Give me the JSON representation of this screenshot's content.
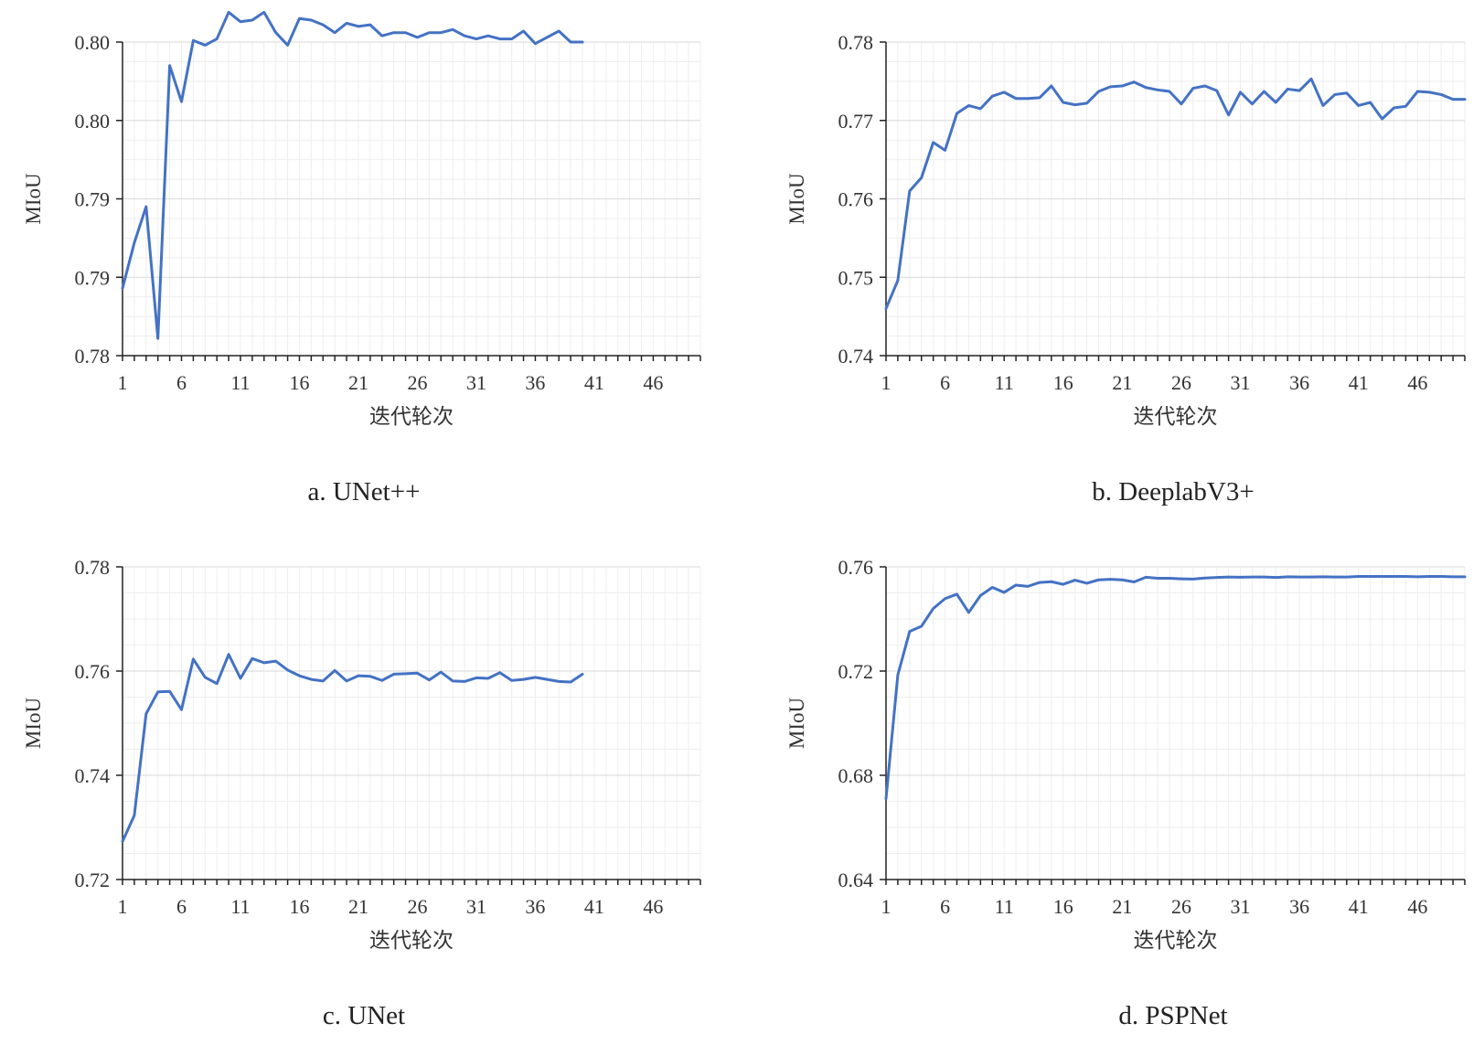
{
  "figure": {
    "xlabel": "迭代轮次",
    "ylabel": "MIoU",
    "line_color": "#4472C4"
  },
  "chart_data": [
    {
      "type": "line",
      "caption": "a. UNet++",
      "xlabel": "迭代轮次",
      "ylabel": "MIoU",
      "xlim": [
        1,
        50
      ],
      "xticks": [
        "1",
        "6",
        "11",
        "16",
        "21",
        "26",
        "31",
        "36",
        "41",
        "46"
      ],
      "ylim": [
        0.78,
        0.8
      ],
      "ytick_labels": [
        "0.78",
        "0.79",
        "0.79",
        "0.80",
        "0.80"
      ],
      "grid": true,
      "x": [
        1,
        2,
        3,
        4,
        5,
        6,
        7,
        8,
        9,
        10,
        11,
        12,
        13,
        14,
        15,
        16,
        17,
        18,
        19,
        20,
        21,
        22,
        23,
        24,
        25,
        26,
        27,
        28,
        29,
        30,
        31,
        32,
        33,
        34,
        35,
        36,
        37,
        38,
        39,
        40
      ],
      "series": [
        {
          "values": [
            0.7843,
            0.7872,
            0.7895,
            0.7811,
            0.7985,
            0.7962,
            0.8001,
            0.7998,
            0.8002,
            0.8019,
            0.8013,
            0.8014,
            0.8019,
            0.8006,
            0.7998,
            0.8015,
            0.8014,
            0.8011,
            0.8006,
            0.8012,
            0.801,
            0.8011,
            0.8004,
            0.8006,
            0.8006,
            0.8003,
            0.8006,
            0.8006,
            0.8008,
            0.8004,
            0.8002,
            0.8004,
            0.8002,
            0.8002,
            0.8007,
            0.7999,
            0.8003,
            0.8007,
            0.8,
            0.8
          ]
        }
      ]
    },
    {
      "type": "line",
      "caption": "b. DeeplabV3+",
      "xlabel": "迭代轮次",
      "ylabel": "MIoU",
      "xlim": [
        1,
        50
      ],
      "xticks": [
        "1",
        "6",
        "11",
        "16",
        "21",
        "26",
        "31",
        "36",
        "41",
        "46"
      ],
      "ylim": [
        0.74,
        0.78
      ],
      "ytick_labels": [
        "0.74",
        "0.75",
        "0.76",
        "0.77",
        "0.78"
      ],
      "grid": true,
      "x": [
        1,
        2,
        3,
        4,
        5,
        6,
        7,
        8,
        9,
        10,
        11,
        12,
        13,
        14,
        15,
        16,
        17,
        18,
        19,
        20,
        21,
        22,
        23,
        24,
        25,
        26,
        27,
        28,
        29,
        30,
        31,
        32,
        33,
        34,
        35,
        36,
        37,
        38,
        39,
        40,
        41,
        42,
        43,
        44,
        45,
        46,
        47,
        48,
        49,
        50
      ],
      "series": [
        {
          "values": [
            0.746,
            0.7496,
            0.761,
            0.7627,
            0.7672,
            0.7662,
            0.7709,
            0.7719,
            0.7715,
            0.7731,
            0.7736,
            0.7728,
            0.7728,
            0.7729,
            0.7744,
            0.7723,
            0.772,
            0.7722,
            0.7737,
            0.7743,
            0.7744,
            0.7749,
            0.7742,
            0.7739,
            0.7737,
            0.7721,
            0.7741,
            0.7744,
            0.7738,
            0.7707,
            0.7736,
            0.7721,
            0.7737,
            0.7723,
            0.774,
            0.7738,
            0.7753,
            0.7719,
            0.7733,
            0.7735,
            0.7719,
            0.7723,
            0.7702,
            0.7716,
            0.7718,
            0.7737,
            0.7736,
            0.7733,
            0.7727,
            0.7727
          ]
        }
      ]
    },
    {
      "type": "line",
      "caption": "c. UNet",
      "xlabel": "迭代轮次",
      "ylabel": "MIoU",
      "xlim": [
        1,
        50
      ],
      "xticks": [
        "1",
        "6",
        "11",
        "16",
        "21",
        "26",
        "31",
        "36",
        "41",
        "46"
      ],
      "ylim": [
        0.72,
        0.78
      ],
      "ytick_labels": [
        "0.72",
        "0.74",
        "0.76",
        "0.78"
      ],
      "grid": true,
      "x": [
        1,
        2,
        3,
        4,
        5,
        6,
        7,
        8,
        9,
        10,
        11,
        12,
        13,
        14,
        15,
        16,
        17,
        18,
        19,
        20,
        21,
        22,
        23,
        24,
        25,
        26,
        27,
        28,
        29,
        30,
        31,
        32,
        33,
        34,
        35,
        36,
        37,
        38,
        39,
        40
      ],
      "series": [
        {
          "values": [
            0.7273,
            0.7323,
            0.7518,
            0.756,
            0.7561,
            0.7526,
            0.7623,
            0.7588,
            0.7576,
            0.7632,
            0.7586,
            0.7624,
            0.7616,
            0.7619,
            0.7602,
            0.7591,
            0.7584,
            0.7581,
            0.7601,
            0.7581,
            0.7591,
            0.759,
            0.7582,
            0.7594,
            0.7595,
            0.7596,
            0.7583,
            0.7598,
            0.7581,
            0.758,
            0.7587,
            0.7586,
            0.7597,
            0.7582,
            0.7584,
            0.7588,
            0.7584,
            0.758,
            0.7579,
            0.7594
          ]
        }
      ]
    },
    {
      "type": "line",
      "caption": "d. PSPNet",
      "xlabel": "迭代轮次",
      "ylabel": "MIoU",
      "xlim": [
        1,
        50
      ],
      "xticks": [
        "1",
        "6",
        "11",
        "16",
        "21",
        "26",
        "31",
        "36",
        "41",
        "46"
      ],
      "ylim": [
        0.64,
        0.76
      ],
      "ytick_labels": [
        "0.64",
        "0.68",
        "0.72",
        "0.76"
      ],
      "grid": true,
      "x": [
        1,
        2,
        3,
        4,
        5,
        6,
        7,
        8,
        9,
        10,
        11,
        12,
        13,
        14,
        15,
        16,
        17,
        18,
        19,
        20,
        21,
        22,
        23,
        24,
        25,
        26,
        27,
        28,
        29,
        30,
        31,
        32,
        33,
        34,
        35,
        36,
        37,
        38,
        39,
        40,
        41,
        42,
        43,
        44,
        45,
        46,
        47,
        48,
        49,
        50
      ],
      "series": [
        {
          "values": [
            0.671,
            0.7185,
            0.7352,
            0.7372,
            0.744,
            0.7478,
            0.7495,
            0.7425,
            0.749,
            0.7521,
            0.7502,
            0.753,
            0.7525,
            0.754,
            0.7543,
            0.7533,
            0.7549,
            0.7537,
            0.755,
            0.7552,
            0.755,
            0.7542,
            0.756,
            0.7556,
            0.7556,
            0.7554,
            0.7553,
            0.7557,
            0.7559,
            0.7561,
            0.756,
            0.7561,
            0.7561,
            0.7559,
            0.7562,
            0.7561,
            0.7561,
            0.7562,
            0.7561,
            0.7561,
            0.7563,
            0.7563,
            0.7563,
            0.7563,
            0.7563,
            0.7562,
            0.7563,
            0.7563,
            0.7562,
            0.7562
          ]
        }
      ]
    }
  ]
}
